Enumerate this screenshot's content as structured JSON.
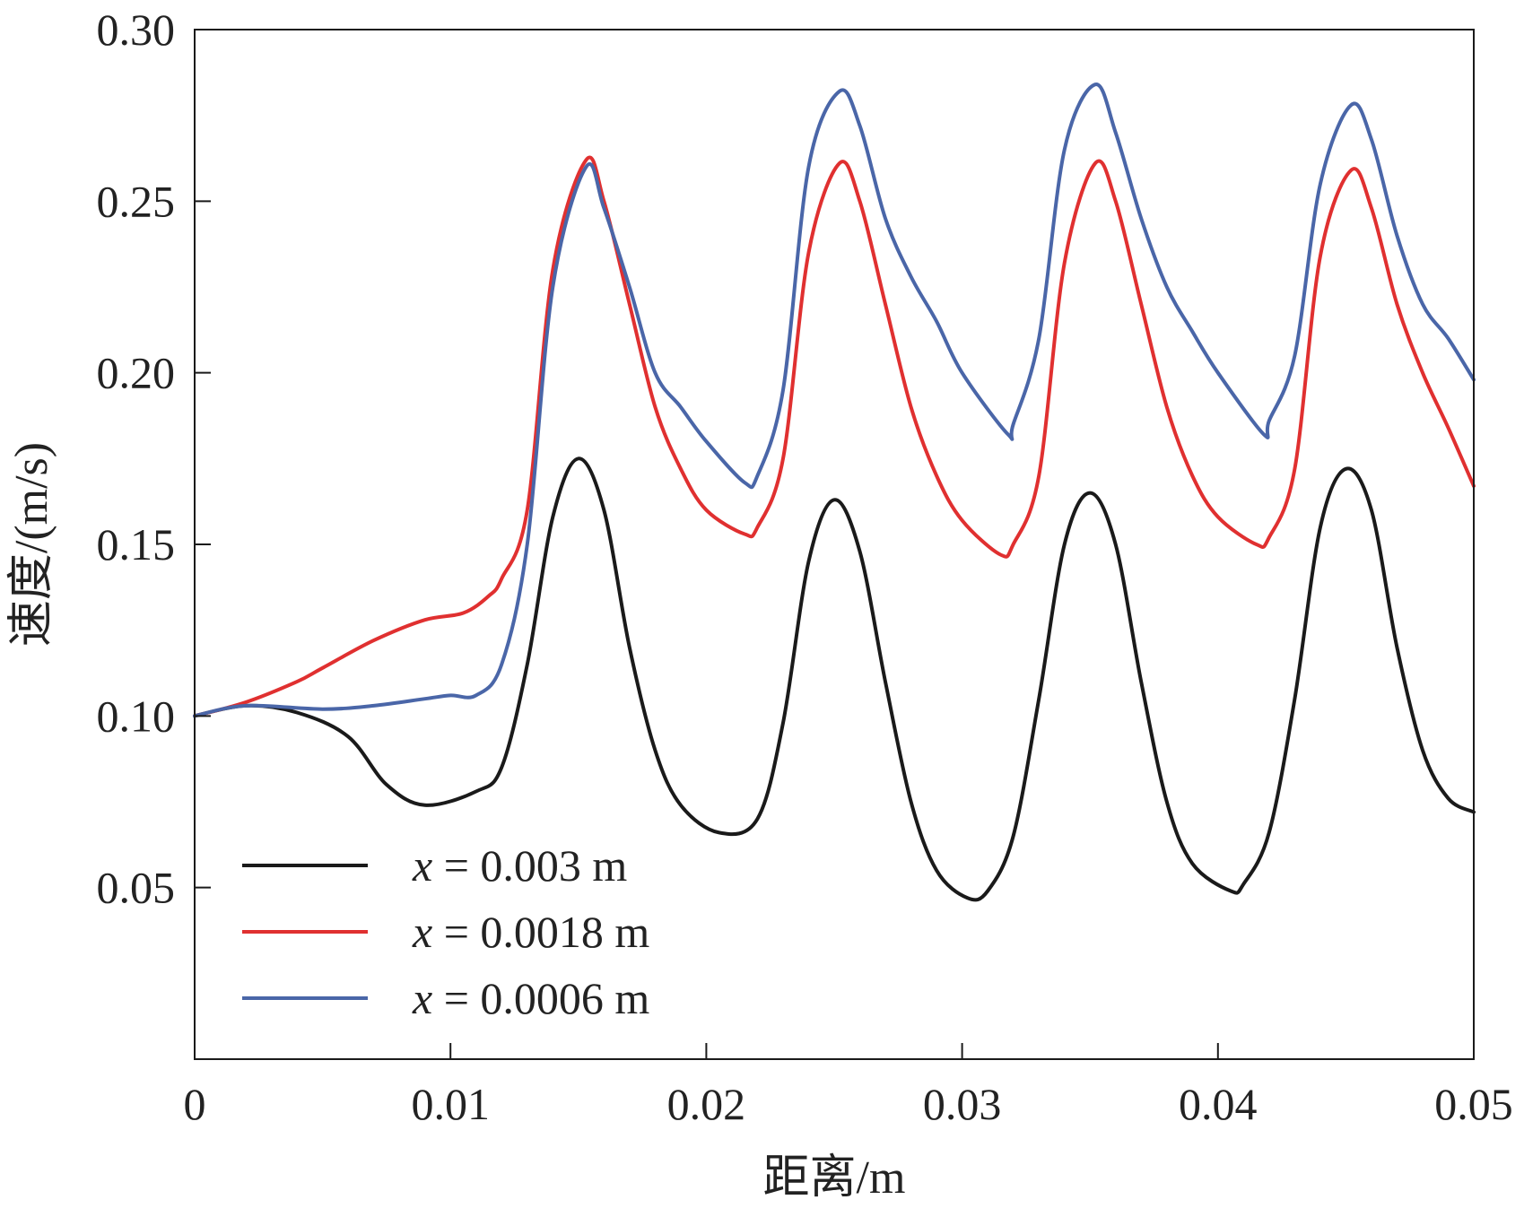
{
  "chart_data": {
    "type": "line",
    "title": "",
    "xlabel": "距离/m",
    "ylabel": "速度/(m/s)",
    "xlim": [
      0,
      0.05
    ],
    "ylim": [
      0,
      0.3
    ],
    "x_ticks": [
      0,
      0.01,
      0.02,
      0.03,
      0.04,
      0.05
    ],
    "x_tick_labels": [
      "0",
      "0.01",
      "0.02",
      "0.03",
      "0.04",
      "0.05"
    ],
    "y_ticks": [
      0.05,
      0.1,
      0.15,
      0.2,
      0.25,
      0.3
    ],
    "y_tick_labels": [
      "0.05",
      "0.10",
      "0.15",
      "0.20",
      "0.25",
      "0.30"
    ],
    "grid": false,
    "legend_position": "bottom-left",
    "series": [
      {
        "name": "x = 0.003 m",
        "legend_var": "x",
        "legend_rest": " = 0.003 m",
        "color": "#1a1a1a",
        "points": [
          [
            0,
            0.1
          ],
          [
            0.002,
            0.103
          ],
          [
            0.004,
            0.101
          ],
          [
            0.006,
            0.094
          ],
          [
            0.0075,
            0.08
          ],
          [
            0.009,
            0.074
          ],
          [
            0.011,
            0.078
          ],
          [
            0.012,
            0.085
          ],
          [
            0.013,
            0.115
          ],
          [
            0.014,
            0.158
          ],
          [
            0.015,
            0.175
          ],
          [
            0.016,
            0.16
          ],
          [
            0.017,
            0.12
          ],
          [
            0.018,
            0.09
          ],
          [
            0.019,
            0.074
          ],
          [
            0.0205,
            0.066
          ],
          [
            0.022,
            0.07
          ],
          [
            0.023,
            0.098
          ],
          [
            0.024,
            0.145
          ],
          [
            0.025,
            0.163
          ],
          [
            0.026,
            0.148
          ],
          [
            0.027,
            0.11
          ],
          [
            0.028,
            0.075
          ],
          [
            0.029,
            0.055
          ],
          [
            0.0302,
            0.047
          ],
          [
            0.031,
            0.049
          ],
          [
            0.032,
            0.065
          ],
          [
            0.033,
            0.105
          ],
          [
            0.034,
            0.15
          ],
          [
            0.035,
            0.165
          ],
          [
            0.036,
            0.15
          ],
          [
            0.037,
            0.11
          ],
          [
            0.038,
            0.075
          ],
          [
            0.039,
            0.057
          ],
          [
            0.0405,
            0.049
          ],
          [
            0.041,
            0.051
          ],
          [
            0.042,
            0.066
          ],
          [
            0.043,
            0.105
          ],
          [
            0.044,
            0.155
          ],
          [
            0.045,
            0.172
          ],
          [
            0.046,
            0.16
          ],
          [
            0.047,
            0.12
          ],
          [
            0.048,
            0.09
          ],
          [
            0.049,
            0.076
          ],
          [
            0.05,
            0.072
          ]
        ]
      },
      {
        "name": "x = 0.0018 m",
        "legend_var": "x",
        "legend_rest": " = 0.0018 m",
        "color": "#e03030",
        "points": [
          [
            0,
            0.1
          ],
          [
            0.002,
            0.104
          ],
          [
            0.004,
            0.11
          ],
          [
            0.005,
            0.114
          ],
          [
            0.007,
            0.122
          ],
          [
            0.009,
            0.128
          ],
          [
            0.0105,
            0.13
          ],
          [
            0.0115,
            0.135
          ],
          [
            0.012,
            0.14
          ],
          [
            0.013,
            0.16
          ],
          [
            0.014,
            0.23
          ],
          [
            0.0153,
            0.262
          ],
          [
            0.016,
            0.25
          ],
          [
            0.017,
            0.22
          ],
          [
            0.018,
            0.19
          ],
          [
            0.019,
            0.172
          ],
          [
            0.02,
            0.16
          ],
          [
            0.0215,
            0.153
          ],
          [
            0.022,
            0.155
          ],
          [
            0.023,
            0.175
          ],
          [
            0.024,
            0.235
          ],
          [
            0.0252,
            0.261
          ],
          [
            0.026,
            0.25
          ],
          [
            0.027,
            0.22
          ],
          [
            0.028,
            0.19
          ],
          [
            0.029,
            0.17
          ],
          [
            0.03,
            0.157
          ],
          [
            0.0315,
            0.147
          ],
          [
            0.032,
            0.15
          ],
          [
            0.033,
            0.17
          ],
          [
            0.034,
            0.232
          ],
          [
            0.0352,
            0.261
          ],
          [
            0.036,
            0.25
          ],
          [
            0.037,
            0.22
          ],
          [
            0.038,
            0.19
          ],
          [
            0.039,
            0.17
          ],
          [
            0.04,
            0.158
          ],
          [
            0.0415,
            0.15
          ],
          [
            0.042,
            0.152
          ],
          [
            0.043,
            0.172
          ],
          [
            0.044,
            0.234
          ],
          [
            0.0452,
            0.259
          ],
          [
            0.046,
            0.248
          ],
          [
            0.047,
            0.22
          ],
          [
            0.048,
            0.2
          ],
          [
            0.049,
            0.184
          ],
          [
            0.05,
            0.167
          ]
        ]
      },
      {
        "name": "x = 0.0006 m",
        "legend_var": "x",
        "legend_rest": " = 0.0006 m",
        "color": "#4a66a8",
        "points": [
          [
            0,
            0.1
          ],
          [
            0.002,
            0.103
          ],
          [
            0.005,
            0.102
          ],
          [
            0.007,
            0.103
          ],
          [
            0.009,
            0.105
          ],
          [
            0.01,
            0.106
          ],
          [
            0.011,
            0.106
          ],
          [
            0.012,
            0.115
          ],
          [
            0.013,
            0.15
          ],
          [
            0.014,
            0.225
          ],
          [
            0.0153,
            0.26
          ],
          [
            0.016,
            0.248
          ],
          [
            0.017,
            0.225
          ],
          [
            0.018,
            0.2
          ],
          [
            0.019,
            0.19
          ],
          [
            0.02,
            0.18
          ],
          [
            0.0215,
            0.168
          ],
          [
            0.022,
            0.17
          ],
          [
            0.023,
            0.195
          ],
          [
            0.024,
            0.26
          ],
          [
            0.0252,
            0.282
          ],
          [
            0.026,
            0.272
          ],
          [
            0.027,
            0.245
          ],
          [
            0.028,
            0.228
          ],
          [
            0.029,
            0.215
          ],
          [
            0.03,
            0.2
          ],
          [
            0.0318,
            0.182
          ],
          [
            0.032,
            0.185
          ],
          [
            0.033,
            0.21
          ],
          [
            0.034,
            0.265
          ],
          [
            0.0352,
            0.284
          ],
          [
            0.036,
            0.27
          ],
          [
            0.037,
            0.245
          ],
          [
            0.038,
            0.225
          ],
          [
            0.039,
            0.212
          ],
          [
            0.04,
            0.2
          ],
          [
            0.0418,
            0.182
          ],
          [
            0.042,
            0.186
          ],
          [
            0.043,
            0.205
          ],
          [
            0.044,
            0.255
          ],
          [
            0.0452,
            0.278
          ],
          [
            0.046,
            0.268
          ],
          [
            0.047,
            0.24
          ],
          [
            0.048,
            0.22
          ],
          [
            0.049,
            0.21
          ],
          [
            0.05,
            0.198
          ]
        ]
      }
    ]
  }
}
